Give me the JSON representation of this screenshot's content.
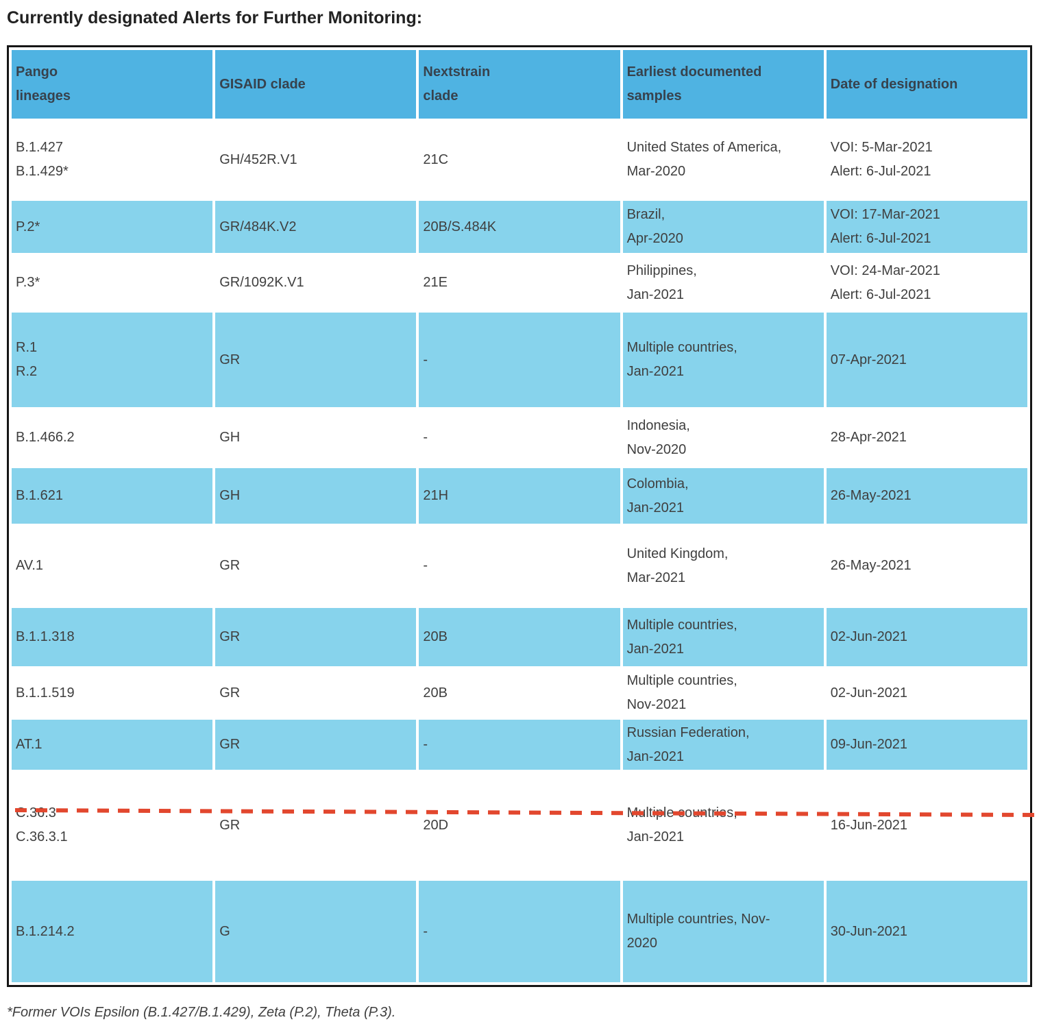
{
  "title": "Currently designated Alerts for Further Monitoring:",
  "footnote": "*Former VOIs Epsilon (B.1.427/B.1.429), Zeta (P.2), Theta (P.3).",
  "colors": {
    "header_bg": "#4FB3E2",
    "row_alt_bg": "#87D3EC",
    "divider_red": "#E2472E",
    "border_black": "#161616",
    "text_dark": "#3F3F3F"
  },
  "table": {
    "columns": [
      {
        "id": "pango-lineages",
        "label_lines": [
          "Pango",
          "lineages"
        ]
      },
      {
        "id": "gisaid-clade",
        "label_lines": [
          "GISAID clade"
        ]
      },
      {
        "id": "nextstrain-clade",
        "label_lines": [
          "Nextstrain",
          "clade"
        ]
      },
      {
        "id": "earliest-documented-samples",
        "label_lines": [
          "Earliest documented",
          "samples"
        ]
      },
      {
        "id": "date-of-designation",
        "label_lines": [
          "Date of designation"
        ]
      }
    ],
    "rows": [
      {
        "cells": [
          [
            "B.1.427",
            "B.1.429*"
          ],
          [
            "GH/452R.V1"
          ],
          [
            "21C"
          ],
          [
            "United States of America,",
            "Mar-2020"
          ],
          [
            "VOI: 5-Mar-2021",
            "Alert: 6-Jul-2021"
          ]
        ]
      },
      {
        "cells": [
          [
            "P.2*"
          ],
          [
            "GR/484K.V2"
          ],
          [
            "20B/S.484K"
          ],
          [
            "Brazil,",
            "Apr-2020"
          ],
          [
            "VOI: 17-Mar-2021",
            "Alert: 6-Jul-2021"
          ]
        ]
      },
      {
        "cells": [
          [
            "P.3*"
          ],
          [
            "GR/1092K.V1"
          ],
          [
            "21E"
          ],
          [
            "Philippines,",
            "Jan-2021"
          ],
          [
            "VOI: 24-Mar-2021",
            "Alert: 6-Jul-2021"
          ]
        ]
      },
      {
        "cells": [
          [
            "R.1",
            "R.2"
          ],
          [
            "GR"
          ],
          [
            "-"
          ],
          [
            "Multiple countries,",
            "Jan-2021"
          ],
          [
            "07-Apr-2021"
          ]
        ]
      },
      {
        "cells": [
          [
            "B.1.466.2"
          ],
          [
            "GH"
          ],
          [
            "-"
          ],
          [
            "Indonesia,",
            "Nov-2020"
          ],
          [
            "28-Apr-2021"
          ]
        ]
      },
      {
        "cells": [
          [
            "B.1.621"
          ],
          [
            "GH"
          ],
          [
            "21H"
          ],
          [
            "Colombia,",
            "Jan-2021"
          ],
          [
            "26-May-2021"
          ]
        ]
      },
      {
        "cells": [
          [
            "AV.1"
          ],
          [
            "GR"
          ],
          [
            "-"
          ],
          [
            "United Kingdom,",
            "Mar-2021"
          ],
          [
            "26-May-2021"
          ]
        ]
      },
      {
        "cells": [
          [
            "B.1.1.318"
          ],
          [
            "GR"
          ],
          [
            "20B"
          ],
          [
            "Multiple countries,",
            "Jan-2021"
          ],
          [
            "02-Jun-2021"
          ]
        ]
      },
      {
        "cells": [
          [
            "B.1.1.519"
          ],
          [
            "GR"
          ],
          [
            "20B"
          ],
          [
            "Multiple countries,",
            "Nov-2021"
          ],
          [
            "02-Jun-2021"
          ]
        ]
      },
      {
        "cells": [
          [
            "AT.1"
          ],
          [
            "GR"
          ],
          [
            "-"
          ],
          [
            "Russian Federation,",
            "Jan-2021"
          ],
          [
            "09-Jun-2021"
          ]
        ]
      },
      {
        "cells": [
          [
            "C.36.3",
            "C.36.3.1"
          ],
          [
            "GR"
          ],
          [
            "20D"
          ],
          [
            "Multiple countries,",
            "Jan-2021"
          ],
          [
            "16-Jun-2021"
          ]
        ]
      },
      {
        "cells": [
          [
            "B.1.214.2"
          ],
          [
            "G"
          ],
          [
            "-"
          ],
          [
            "Multiple countries, Nov-",
            "2020"
          ],
          [
            "30-Jun-2021"
          ]
        ]
      }
    ]
  }
}
